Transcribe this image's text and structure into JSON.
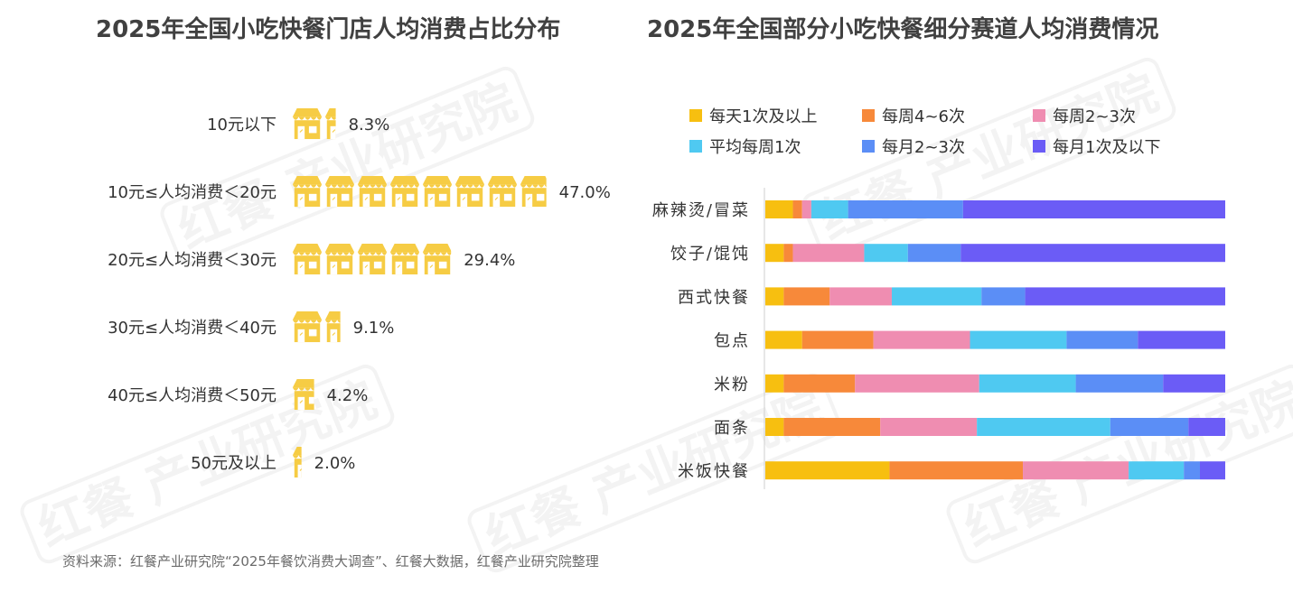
{
  "titles": {
    "left": "2025年全国小吃快餐门店人均消费占比分布",
    "right": "2025年全国部分小吃快餐细分赛道人均消费情况"
  },
  "watermark": {
    "text": "红餐 产业研究院"
  },
  "source": "资料来源：红餐产业研究院“2025年餐饮消费大调查”、红餐大数据，红餐产业研究院整理",
  "chart_data": [
    {
      "type": "bar",
      "orientation": "horizontal",
      "mark": "pictogram",
      "icon": "storefront-icon",
      "color": "#F6CC44",
      "categories": [
        "10元以下",
        "10元≤人均消费＜20元",
        "20元≤人均消费＜30元",
        "30元≤人均消费＜40元",
        "40元≤人均消费＜50元",
        "50元及以上"
      ],
      "values": [
        8.3,
        47.0,
        29.4,
        9.1,
        4.2,
        2.0
      ],
      "labels": [
        "8.3%",
        "47.0%",
        "29.4%",
        "9.1%",
        "4.2%",
        "2.0%"
      ],
      "unit": "%"
    },
    {
      "type": "bar",
      "orientation": "horizontal",
      "stacked": "percent",
      "legend_position": "top",
      "grid": false,
      "categories": [
        "麻辣烫/冒菜",
        "饺子/馄饨",
        "西式快餐",
        "包点",
        "米粉",
        "面条",
        "米饭快餐"
      ],
      "series": [
        {
          "name": "每天1次及以上",
          "color": "#F7BF10",
          "values": [
            6,
            4,
            4,
            8,
            4,
            4,
            27
          ]
        },
        {
          "name": "每周4~6次",
          "color": "#F7893A",
          "values": [
            2,
            2,
            10,
            15.5,
            15.5,
            21,
            29
          ]
        },
        {
          "name": "每周2~3次",
          "color": "#EF8DB1",
          "values": [
            2,
            15.5,
            13.5,
            21,
            27,
            21,
            23
          ]
        },
        {
          "name": "平均每周1次",
          "color": "#4FC9F1",
          "values": [
            8,
            9.5,
            19.5,
            21,
            21,
            29,
            12
          ]
        },
        {
          "name": "每月2~3次",
          "color": "#5B8EF6",
          "values": [
            25,
            11.5,
            9.5,
            15.5,
            19,
            17,
            3.5
          ]
        },
        {
          "name": "每月1次及以下",
          "color": "#6B5CF6",
          "values": [
            57,
            57.5,
            43.5,
            19,
            13.5,
            8,
            5.5
          ]
        }
      ],
      "xlim": [
        0,
        100
      ]
    }
  ]
}
